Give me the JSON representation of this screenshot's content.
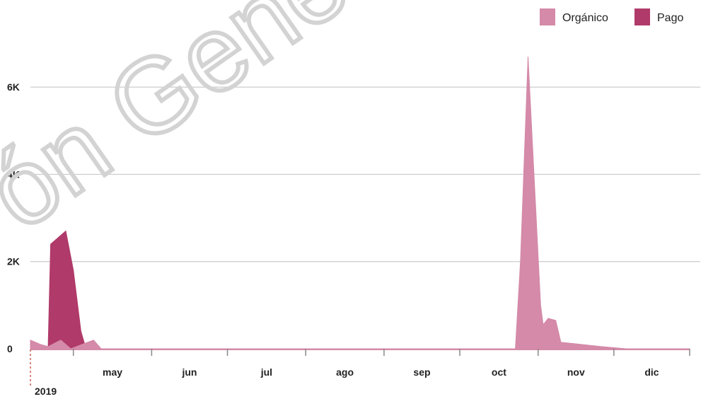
{
  "watermark_text": "ón Gene",
  "chart_data": {
    "type": "area",
    "title": "",
    "xlabel": "",
    "ylabel": "",
    "x_unit": "date",
    "x_range": [
      "2019-04-14",
      "2019-12-31"
    ],
    "ylim": [
      0,
      6700
    ],
    "y_ticks": [
      {
        "value": 0,
        "label": "0"
      },
      {
        "value": 2000,
        "label": "2K"
      },
      {
        "value": 4000,
        "label": "4K"
      },
      {
        "value": 6000,
        "label": "6K"
      }
    ],
    "month_ticks": [
      {
        "date": "2019-05-01",
        "label": "may"
      },
      {
        "date": "2019-06-01",
        "label": "jun"
      },
      {
        "date": "2019-07-01",
        "label": "jul"
      },
      {
        "date": "2019-08-01",
        "label": "ago"
      },
      {
        "date": "2019-09-01",
        "label": "sep"
      },
      {
        "date": "2019-10-01",
        "label": "oct"
      },
      {
        "date": "2019-11-01",
        "label": "nov"
      },
      {
        "date": "2019-12-01",
        "label": "dic"
      }
    ],
    "year_label": "2019",
    "grid": true,
    "legend_position": "top-right",
    "series": [
      {
        "name": "Pago",
        "color": "#b03a6a",
        "points": [
          [
            "2019-04-14",
            0
          ],
          [
            "2019-04-21",
            0
          ],
          [
            "2019-04-22",
            2400
          ],
          [
            "2019-04-28",
            2700
          ],
          [
            "2019-05-01",
            1800
          ],
          [
            "2019-05-04",
            400
          ],
          [
            "2019-05-06",
            0
          ]
        ]
      },
      {
        "name": "Orgánico",
        "color": "#d48aa8",
        "points": [
          [
            "2019-04-14",
            200
          ],
          [
            "2019-04-18",
            100
          ],
          [
            "2019-04-21",
            50
          ],
          [
            "2019-04-26",
            200
          ],
          [
            "2019-04-30",
            0
          ],
          [
            "2019-05-09",
            200
          ],
          [
            "2019-05-12",
            0
          ],
          [
            "2019-10-23",
            0
          ],
          [
            "2019-10-25",
            2000
          ],
          [
            "2019-10-28",
            6700
          ],
          [
            "2019-11-02",
            1000
          ],
          [
            "2019-11-03",
            550
          ],
          [
            "2019-11-05",
            700
          ],
          [
            "2019-11-08",
            650
          ],
          [
            "2019-11-10",
            150
          ],
          [
            "2019-11-26",
            50
          ],
          [
            "2019-12-06",
            0
          ],
          [
            "2019-12-31",
            0
          ]
        ]
      }
    ]
  }
}
